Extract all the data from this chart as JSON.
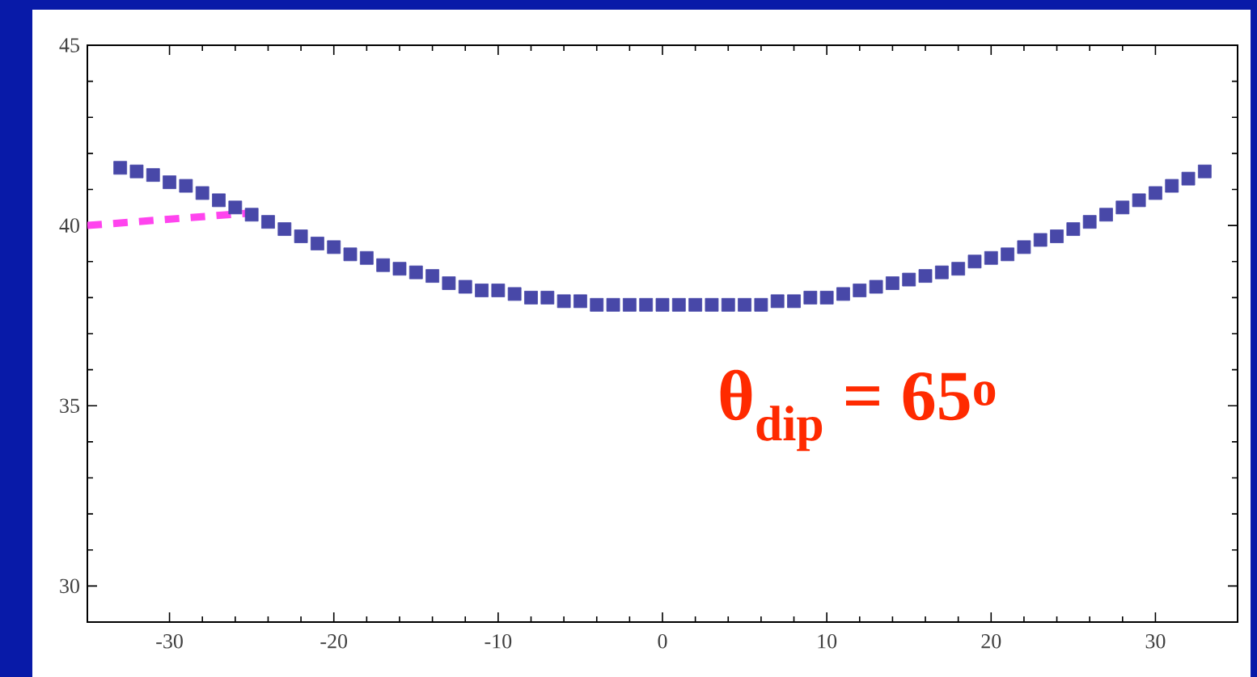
{
  "chart_data": {
    "type": "scatter",
    "xlim": [
      -35,
      35
    ],
    "ylim": [
      29,
      45
    ],
    "xticks": [
      -30,
      -20,
      -10,
      0,
      10,
      20,
      30
    ],
    "yticks": [
      30,
      35,
      40,
      45
    ],
    "grid": false,
    "annotations": [
      "θ$_{dip}$ = 65$^{o}$"
    ],
    "series": [
      {
        "color": "#4848a8",
        "marker": "square",
        "x": [
          -33,
          -32,
          -31,
          -30,
          -29,
          -28,
          -27,
          -26,
          -25,
          -24,
          -23,
          -22,
          -21,
          -20,
          -19,
          -18,
          -17,
          -16,
          -15,
          -14,
          -13,
          -12,
          -11,
          -10,
          -9,
          -8,
          -7,
          -6,
          -5,
          -4,
          -3,
          -2,
          -1,
          0,
          1,
          2,
          3,
          4,
          5,
          6,
          7,
          8,
          9,
          10,
          11,
          12,
          13,
          14,
          15,
          16,
          17,
          18,
          19,
          20,
          21,
          22,
          23,
          24,
          25,
          26,
          27,
          28,
          29,
          30,
          31,
          32,
          33
        ],
        "values": [
          41.6,
          41.5,
          41.4,
          41.2,
          41.1,
          40.9,
          40.7,
          40.5,
          40.3,
          40.1,
          39.9,
          39.7,
          39.5,
          39.4,
          39.2,
          39.1,
          38.9,
          38.8,
          38.7,
          38.6,
          38.4,
          38.3,
          38.2,
          38.2,
          38.1,
          38.0,
          38.0,
          37.9,
          37.9,
          37.8,
          37.8,
          37.8,
          37.8,
          37.8,
          37.8,
          37.8,
          37.8,
          37.8,
          37.8,
          37.8,
          37.9,
          37.9,
          38.0,
          38.0,
          38.1,
          38.2,
          38.3,
          38.4,
          38.5,
          38.6,
          38.7,
          38.8,
          39.0,
          39.1,
          39.2,
          39.4,
          39.6,
          39.7,
          39.9,
          40.1,
          40.3,
          40.5,
          40.7,
          40.9,
          41.1,
          41.3,
          41.5
        ]
      },
      {
        "type": "line",
        "color": "#ff44ee",
        "line_style": "dashed",
        "x": [
          -35,
          -25
        ],
        "values": [
          40.0,
          40.35
        ]
      }
    ]
  }
}
